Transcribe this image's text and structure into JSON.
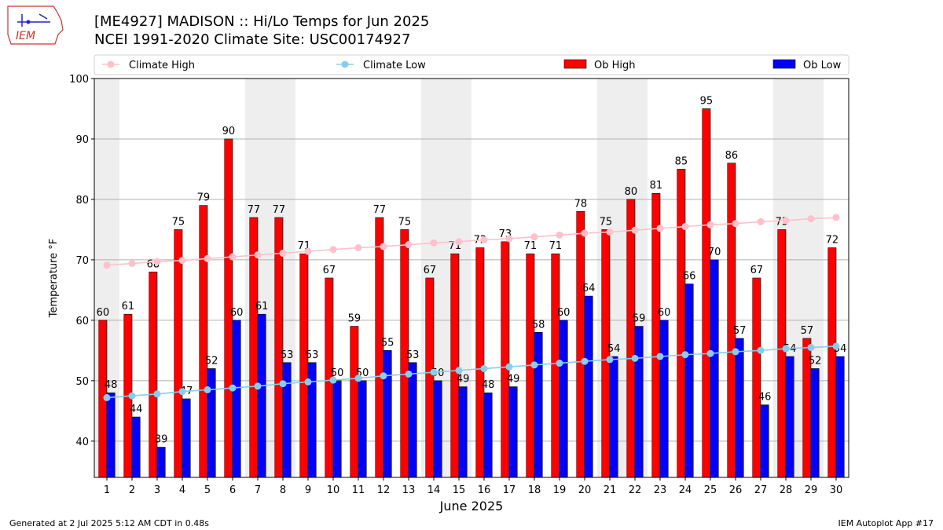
{
  "header": {
    "title_line1": "[ME4927] MADISON :: Hi/Lo Temps for Jun 2025",
    "title_line2": "NCEI 1991-2020 Climate Site: USC00174927",
    "logo_text": "IEM"
  },
  "footer": {
    "generated": "Generated at 2 Jul 2025 5:12 AM CDT in 0.48s",
    "app": "IEM Autoplot App #17"
  },
  "colors": {
    "ob_high": "#ff0000",
    "ob_low": "#0000ff",
    "climate_high": "#ffc0cb",
    "climate_low": "#87ceeb",
    "weekend_band": "#eeeeee"
  },
  "chart_data": {
    "type": "bar",
    "xlabel": "June 2025",
    "ylabel": "Temperature °F",
    "ylim": [
      34,
      100
    ],
    "yticks": [
      40,
      50,
      60,
      70,
      80,
      90,
      100
    ],
    "grid": true,
    "legend_position": "top",
    "categories": [
      1,
      2,
      3,
      4,
      5,
      6,
      7,
      8,
      9,
      10,
      11,
      12,
      13,
      14,
      15,
      16,
      17,
      18,
      19,
      20,
      21,
      22,
      23,
      24,
      25,
      26,
      27,
      28,
      29,
      30
    ],
    "weekend_days": [
      1,
      7,
      8,
      14,
      15,
      21,
      22,
      28,
      29
    ],
    "series": [
      {
        "name": "Climate High",
        "kind": "line",
        "values": [
          69.1,
          69.4,
          69.7,
          69.9,
          70.2,
          70.5,
          70.8,
          71.1,
          71.4,
          71.7,
          72.0,
          72.2,
          72.5,
          72.8,
          73.0,
          73.3,
          73.5,
          73.8,
          74.1,
          74.4,
          74.6,
          74.9,
          75.2,
          75.5,
          75.8,
          76.0,
          76.3,
          76.5,
          76.8,
          77.0
        ]
      },
      {
        "name": "Climate Low",
        "kind": "line",
        "values": [
          47.2,
          47.5,
          47.8,
          48.2,
          48.5,
          48.8,
          49.1,
          49.5,
          49.8,
          50.1,
          50.4,
          50.8,
          51.1,
          51.4,
          51.7,
          52.0,
          52.3,
          52.6,
          52.9,
          53.2,
          53.5,
          53.7,
          54.0,
          54.3,
          54.5,
          54.8,
          55.0,
          55.3,
          55.5,
          55.7
        ]
      },
      {
        "name": "Ob High",
        "kind": "bar",
        "values": [
          60,
          61,
          68,
          75,
          79,
          90,
          77,
          77,
          71,
          67,
          59,
          77,
          75,
          67,
          71,
          72,
          73,
          71,
          71,
          78,
          75,
          80,
          81,
          85,
          95,
          86,
          67,
          75,
          57,
          72
        ]
      },
      {
        "name": "Ob Low",
        "kind": "bar",
        "values": [
          48,
          44,
          39,
          47,
          52,
          60,
          61,
          53,
          53,
          50,
          50,
          55,
          53,
          50,
          49,
          48,
          49,
          58,
          60,
          64,
          54,
          59,
          60,
          66,
          70,
          57,
          46,
          54,
          52,
          54
        ]
      }
    ]
  }
}
